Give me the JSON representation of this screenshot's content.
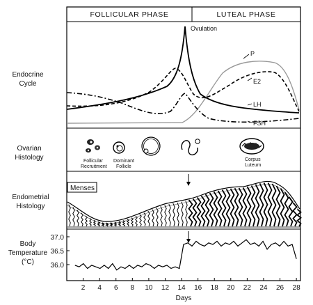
{
  "phases": {
    "follicular": "FOLLICULAR PHASE",
    "luteal": "LUTEAL PHASE"
  },
  "row_labels": {
    "endocrine": [
      "Endocrine",
      "Cycle"
    ],
    "ovarian": [
      "Ovarian",
      "Histology"
    ],
    "endometrial": [
      "Endometrial",
      "Histology"
    ],
    "temperature": [
      "Body",
      "Temperature",
      "(°C)"
    ]
  },
  "endocrine": {
    "ovulation_label": "Ovulation",
    "curve_labels": {
      "p": "P",
      "e2": "E2",
      "lh": "LH",
      "fsh": "FSH"
    }
  },
  "ovarian": {
    "labels": {
      "recruitment": [
        "Follicular",
        "Recruitment"
      ],
      "dominant": [
        "Dominant",
        "Follicle"
      ],
      "luteum": [
        "Corpus",
        "Luteum"
      ]
    }
  },
  "endometrial": {
    "menses_label": "Menses"
  },
  "temperature": {
    "y_ticks": [
      "37.0",
      "36.5",
      "36.0"
    ],
    "series": [
      36.1,
      36.05,
      36.15,
      36.0,
      36.1,
      36.05,
      36.0,
      36.1,
      36.0,
      36.15,
      35.95,
      36.05,
      36.0,
      36.1,
      36.0,
      36.1,
      36.05,
      36.15,
      36.1,
      36.0,
      36.1,
      36.05,
      36.1,
      36.0,
      36.05,
      36.0,
      36.75,
      36.8,
      36.7,
      36.85,
      36.75,
      36.7,
      36.8,
      36.75,
      36.85,
      36.7,
      36.8,
      36.75,
      36.85,
      36.7,
      36.8,
      36.9,
      36.75,
      36.8,
      36.7,
      36.85,
      36.6,
      36.75,
      36.8,
      36.7,
      36.85,
      36.7,
      36.75,
      36.3
    ],
    "series_day_start": 1,
    "series_day_end": 28
  },
  "x_axis": {
    "ticks": [
      "2",
      "4",
      "6",
      "8",
      "10",
      "12",
      "14",
      "16",
      "18",
      "20",
      "22",
      "24",
      "26",
      "28"
    ],
    "label": "Days"
  }
}
